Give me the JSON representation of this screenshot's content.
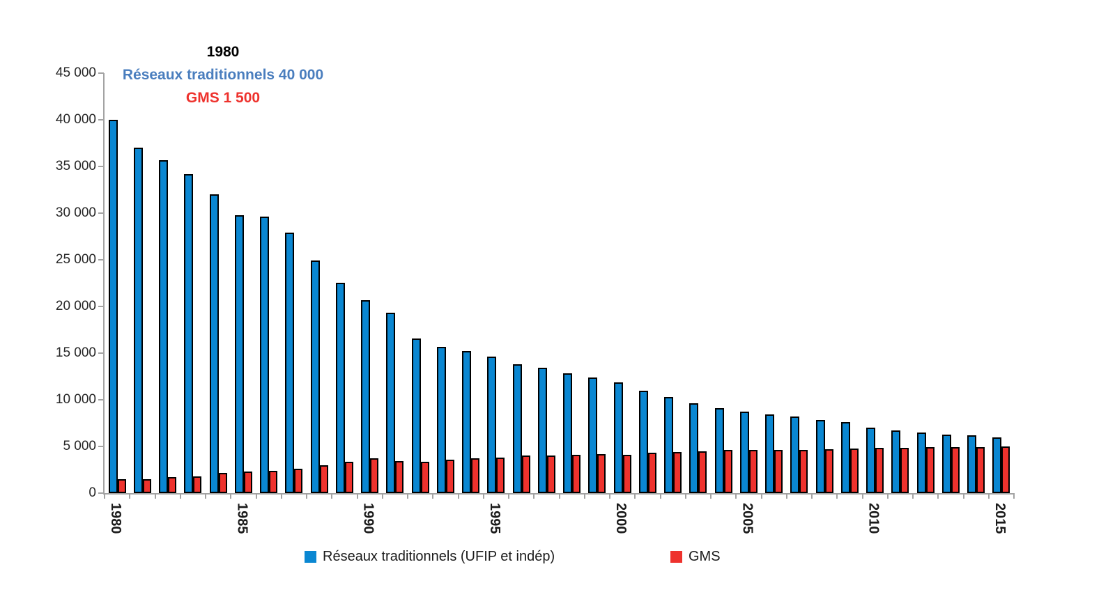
{
  "chart_data": {
    "type": "bar",
    "title": "",
    "annotation": {
      "title": "1980",
      "line1": "Réseaux traditionnels 40 000",
      "line2": "GMS 1 500"
    },
    "categories": [
      1980,
      1981,
      1982,
      1983,
      1984,
      1985,
      1986,
      1987,
      1988,
      1989,
      1990,
      1991,
      1992,
      1993,
      1994,
      1995,
      1996,
      1997,
      1998,
      1999,
      2000,
      2001,
      2002,
      2003,
      2004,
      2005,
      2006,
      2007,
      2008,
      2009,
      2010,
      2011,
      2012,
      2013,
      2014,
      2015
    ],
    "series": [
      {
        "name": "Réseaux traditionnels (UFIP et indép)",
        "color": "#0a87d2",
        "values": [
          40000,
          37000,
          35700,
          34200,
          32000,
          29800,
          29600,
          27900,
          24900,
          22500,
          20700,
          19300,
          16600,
          15700,
          15200,
          14600,
          13800,
          13400,
          12800,
          12400,
          11900,
          11000,
          10300,
          9600,
          9100,
          8700,
          8400,
          8200,
          7800,
          7600,
          7000,
          6700,
          6500,
          6300,
          6200,
          6000
        ]
      },
      {
        "name": "GMS",
        "color": "#ee322d",
        "values": [
          1500,
          1500,
          1750,
          1800,
          2200,
          2300,
          2400,
          2600,
          3000,
          3350,
          3700,
          3450,
          3350,
          3550,
          3750,
          3800,
          4000,
          4050,
          4100,
          4150,
          4100,
          4350,
          4400,
          4500,
          4600,
          4600,
          4600,
          4650,
          4700,
          4800,
          4850,
          4850,
          4900,
          4900,
          4950,
          5000
        ]
      }
    ],
    "ylim": [
      0,
      45000
    ],
    "y_tick_step": 5000,
    "y_tick_labels": [
      "0",
      "5 000",
      "10 000",
      "15 000",
      "20 000",
      "25 000",
      "30 000",
      "35 000",
      "40 000",
      "45 000"
    ],
    "x_tick_labels_shown": [
      "1980",
      "1985",
      "1990",
      "1995",
      "2000",
      "2005",
      "2010",
      "2015"
    ],
    "x_label_interval": 5,
    "grid": false,
    "legend_position": "bottom"
  },
  "colors": {
    "bar_blue": "#0a87d2",
    "bar_red": "#ee322d",
    "annotation_blue": "#4a7ebe",
    "annotation_red": "#ee322d",
    "axis_gray": "#a3a3a3",
    "label_dark": "#262626"
  }
}
